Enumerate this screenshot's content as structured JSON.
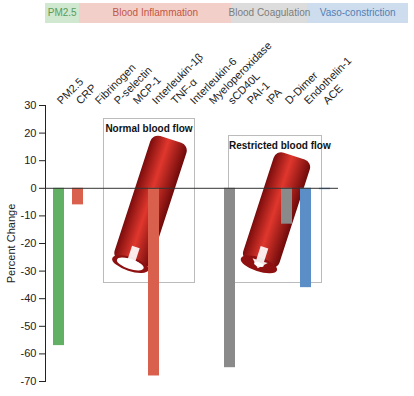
{
  "chart_data": {
    "type": "bar",
    "ylabel": "Percent Change",
    "categories": [
      "PM2.5",
      "CRP",
      "Fibrinogen",
      "P-selectin",
      "MCP-1",
      "Interleukin-1β",
      "TNF-α",
      "Interleukin-6",
      "Myeloperoxidase",
      "sCD40L",
      "PAI-1",
      "tPA",
      "D-Dimer",
      "Endothelin-1",
      "ACE"
    ],
    "values": [
      -57,
      -6,
      null,
      null,
      null,
      -68,
      null,
      null,
      null,
      -65,
      null,
      null,
      -13,
      -36,
      -0.5
    ],
    "groups": [
      {
        "name": "PM2.5",
        "color": "#62b063",
        "categories": [
          "PM2.5"
        ]
      },
      {
        "name": "Blood Inflammation",
        "color": "#d8604d",
        "categories": [
          "CRP",
          "Fibrinogen",
          "P-selectin",
          "MCP-1",
          "Interleukin-1β",
          "TNF-α",
          "Interleukin-6",
          "Myeloperoxidase"
        ]
      },
      {
        "name": "Blood Coagulation",
        "color": "#8a8a8a",
        "categories": [
          "sCD40L",
          "PAI-1",
          "tPA",
          "D-Dimer"
        ]
      },
      {
        "name": "Vaso-constriction",
        "color": "#5b8ec7",
        "categories": [
          "Endothelin-1",
          "ACE"
        ]
      }
    ],
    "annotations": [
      "Normal blood flow",
      "Restricted blood flow"
    ],
    "ylim": [
      -70,
      30
    ],
    "yticks": [
      -70,
      -60,
      -50,
      -40,
      -30,
      -20,
      -10,
      0,
      10,
      20,
      30
    ]
  }
}
